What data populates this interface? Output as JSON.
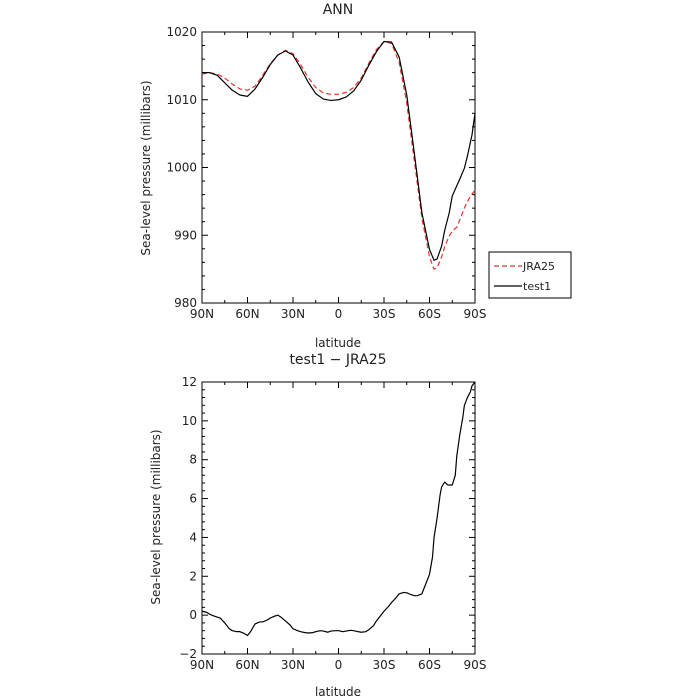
{
  "chart_data": [
    {
      "type": "line",
      "title": "ANN",
      "xlabel": "latitude",
      "ylabel": "Sea-level pressure (millibars)",
      "xlim": [
        90,
        -90
      ],
      "ylim": [
        980,
        1020
      ],
      "x_ticks": [
        90,
        60,
        30,
        0,
        -30,
        -60,
        -90
      ],
      "x_tick_labels": [
        "90N",
        "60N",
        "30N",
        "0",
        "30S",
        "60S",
        "90S"
      ],
      "y_ticks": [
        980,
        990,
        1000,
        1010,
        1020
      ],
      "y_tick_labels": [
        "980",
        "990",
        "1000",
        "1010",
        "1020"
      ],
      "legend_position": "right-bottom",
      "grid": false,
      "series": [
        {
          "name": "JRA25",
          "color": "#e8332b",
          "dash": "dashed",
          "x": [
            90,
            85,
            80,
            75,
            70,
            65,
            60,
            55,
            50,
            45,
            40,
            35,
            30,
            25,
            20,
            15,
            10,
            5,
            0,
            -5,
            -10,
            -15,
            -20,
            -25,
            -30,
            -35,
            -40,
            -45,
            -50,
            -55,
            -60,
            -63,
            -65,
            -68,
            -70,
            -73,
            -75,
            -78,
            -80,
            -83,
            -85,
            -88,
            -90
          ],
          "values": [
            1013.8,
            1014.0,
            1013.8,
            1013.2,
            1012.3,
            1011.6,
            1011.4,
            1012.0,
            1013.6,
            1015.3,
            1016.6,
            1017.3,
            1016.8,
            1015.2,
            1013.3,
            1011.8,
            1011.0,
            1010.8,
            1010.8,
            1011.1,
            1011.8,
            1013.2,
            1015.4,
            1017.4,
            1018.6,
            1018.3,
            1015.5,
            1009.5,
            1001.0,
            992.5,
            986.8,
            985.0,
            985.2,
            986.8,
            988.3,
            989.9,
            990.6,
            991.2,
            992.3,
            994.0,
            995.0,
            996.1,
            996.6
          ]
        },
        {
          "name": "test1",
          "color": "#000000",
          "dash": "solid",
          "x": [
            90,
            85,
            80,
            75,
            70,
            65,
            60,
            55,
            50,
            45,
            40,
            35,
            30,
            25,
            20,
            15,
            10,
            5,
            0,
            -5,
            -10,
            -15,
            -20,
            -25,
            -30,
            -35,
            -40,
            -45,
            -50,
            -55,
            -60,
            -63,
            -65,
            -68,
            -70,
            -73,
            -75,
            -78,
            -80,
            -83,
            -85,
            -88,
            -90
          ],
          "values": [
            1014.0,
            1014.0,
            1013.6,
            1012.5,
            1011.4,
            1010.7,
            1010.5,
            1011.6,
            1013.3,
            1015.2,
            1016.6,
            1017.2,
            1016.6,
            1014.7,
            1012.6,
            1010.9,
            1010.1,
            1009.9,
            1010.0,
            1010.4,
            1011.3,
            1012.9,
            1015.1,
            1017.1,
            1018.6,
            1018.5,
            1016.3,
            1010.7,
            1002.1,
            993.3,
            987.9,
            986.3,
            986.5,
            988.4,
            990.7,
            993.3,
            995.8,
            997.3,
            998.3,
            999.9,
            1001.7,
            1004.8,
            1008.0
          ]
        }
      ]
    },
    {
      "type": "line",
      "title": "test1 − JRA25",
      "xlabel": "latitude",
      "ylabel": "Sea-level pressure (millibars)",
      "xlim": [
        90,
        -90
      ],
      "ylim": [
        -2,
        12
      ],
      "x_ticks": [
        90,
        60,
        30,
        0,
        -30,
        -60,
        -90
      ],
      "x_tick_labels": [
        "90N",
        "60N",
        "30N",
        "0",
        "30S",
        "60S",
        "90S"
      ],
      "y_ticks": [
        -2,
        0,
        2,
        4,
        6,
        8,
        10,
        12
      ],
      "y_tick_labels": [
        "−2",
        "0",
        "2",
        "4",
        "6",
        "8",
        "10",
        "12"
      ],
      "grid": false,
      "series": [
        {
          "color": "#000000",
          "dash": "solid",
          "x": [
            90,
            87,
            85,
            82,
            80,
            78,
            75,
            72,
            70,
            67,
            65,
            62,
            60,
            58,
            55,
            52,
            50,
            47,
            45,
            42,
            40,
            38,
            35,
            32,
            30,
            27,
            25,
            22,
            20,
            17,
            15,
            12,
            10,
            7,
            5,
            2,
            0,
            -3,
            -5,
            -8,
            -10,
            -13,
            -15,
            -18,
            -20,
            -23,
            -25,
            -28,
            -30,
            -33,
            -35,
            -38,
            -40,
            -43,
            -45,
            -48,
            -50,
            -52,
            -55,
            -57,
            -60,
            -62,
            -63,
            -65,
            -67,
            -68,
            -70,
            -72,
            -75,
            -77,
            -78,
            -80,
            -82,
            -83,
            -85,
            -87,
            -88,
            -90
          ],
          "values": [
            0.2,
            0.15,
            0.05,
            -0.05,
            -0.1,
            -0.15,
            -0.4,
            -0.7,
            -0.8,
            -0.85,
            -0.85,
            -0.95,
            -1.05,
            -0.85,
            -0.45,
            -0.35,
            -0.35,
            -0.25,
            -0.15,
            -0.05,
            0.0,
            -0.1,
            -0.3,
            -0.5,
            -0.7,
            -0.8,
            -0.85,
            -0.9,
            -0.92,
            -0.9,
            -0.85,
            -0.8,
            -0.82,
            -0.88,
            -0.82,
            -0.8,
            -0.8,
            -0.85,
            -0.82,
            -0.78,
            -0.8,
            -0.85,
            -0.88,
            -0.85,
            -0.75,
            -0.55,
            -0.3,
            0.0,
            0.2,
            0.45,
            0.65,
            0.9,
            1.1,
            1.17,
            1.15,
            1.05,
            1.0,
            1.0,
            1.1,
            1.5,
            2.1,
            3.0,
            4.0,
            5.0,
            6.2,
            6.6,
            6.85,
            6.7,
            6.7,
            7.2,
            8.2,
            9.3,
            10.2,
            10.8,
            11.2,
            11.5,
            11.8,
            12.0
          ]
        }
      ]
    }
  ]
}
